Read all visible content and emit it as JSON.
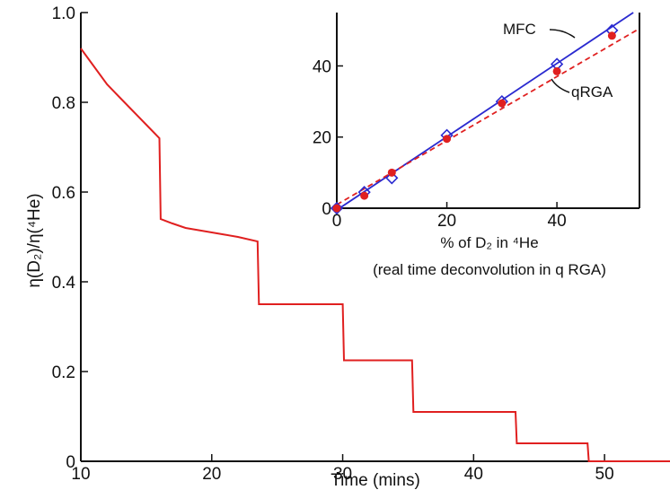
{
  "chart_data": [
    {
      "type": "line",
      "xlabel": "Time (mins)",
      "ylabel": "η(D₂)/η(⁴He)",
      "xlim": [
        10,
        55
      ],
      "ylim": [
        0,
        1.0
      ],
      "x_ticks": [
        10,
        20,
        30,
        40,
        50
      ],
      "y_ticks": [
        0,
        0.2,
        0.4,
        0.6,
        0.8,
        1.0
      ],
      "y_tick_labels": [
        "0",
        "0.2",
        "0.4",
        "0.6",
        "0.8",
        "1.0"
      ],
      "color": "#e02020",
      "series": [
        {
          "x": [
            10,
            11,
            12,
            13,
            14,
            15,
            16,
            16.1,
            17,
            18,
            19,
            20,
            21,
            22,
            23.5,
            23.6,
            30,
            30.1,
            35.3,
            35.4,
            43.2,
            43.3,
            48.7,
            48.8,
            55
          ],
          "y": [
            0.92,
            0.88,
            0.84,
            0.81,
            0.78,
            0.75,
            0.72,
            0.54,
            0.53,
            0.52,
            0.515,
            0.51,
            0.505,
            0.5,
            0.49,
            0.35,
            0.35,
            0.225,
            0.225,
            0.11,
            0.11,
            0.04,
            0.04,
            0.0,
            0.0
          ]
        }
      ]
    },
    {
      "type": "scatter",
      "xlabel": "% of D₂ in ⁴He",
      "xlabel_note": "(real time deconvolution in q RGA)",
      "xlim": [
        0,
        55
      ],
      "ylim": [
        0,
        55
      ],
      "x_ticks": [
        0,
        20,
        40
      ],
      "y_ticks": [
        0,
        20,
        40
      ],
      "series": [
        {
          "name": "MFC",
          "color": "#2a2ad0",
          "marker": "diamond-open",
          "x": [
            0,
            5,
            10,
            20,
            30,
            40,
            50
          ],
          "y": [
            0,
            4.5,
            8.5,
            20.5,
            30,
            40.5,
            50
          ]
        },
        {
          "name": "qRGA",
          "color": "#e02020",
          "marker": "circle-filled",
          "x": [
            0,
            5,
            10,
            20,
            30,
            40,
            50
          ],
          "y": [
            0,
            3.5,
            10,
            19.5,
            29.5,
            38.5,
            48.5
          ]
        }
      ],
      "fit_lines": [
        {
          "name": "MFC",
          "color": "#2a2ad0",
          "style": "solid",
          "slope": 1.03,
          "intercept": -0.5
        },
        {
          "name": "qRGA",
          "color": "#e02020",
          "style": "dashed",
          "slope": 0.9,
          "intercept": 1.0
        }
      ]
    }
  ]
}
